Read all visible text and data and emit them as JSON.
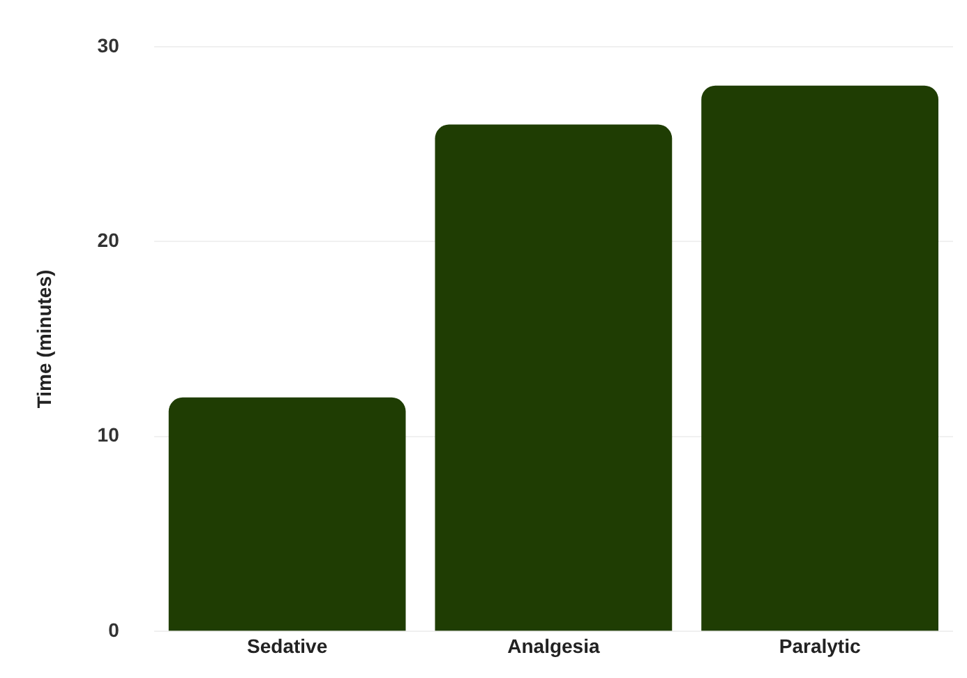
{
  "chart_data": {
    "type": "bar",
    "ylabel": "Time (minutes)",
    "categories": [
      "Sedative",
      "Analgesia",
      "Paralytic"
    ],
    "values": [
      12,
      26,
      28
    ],
    "color": "#1f3d03",
    "ylim": [
      0,
      30
    ],
    "yticks": [
      0,
      10,
      20,
      30
    ],
    "grid": "y",
    "legend": false
  }
}
